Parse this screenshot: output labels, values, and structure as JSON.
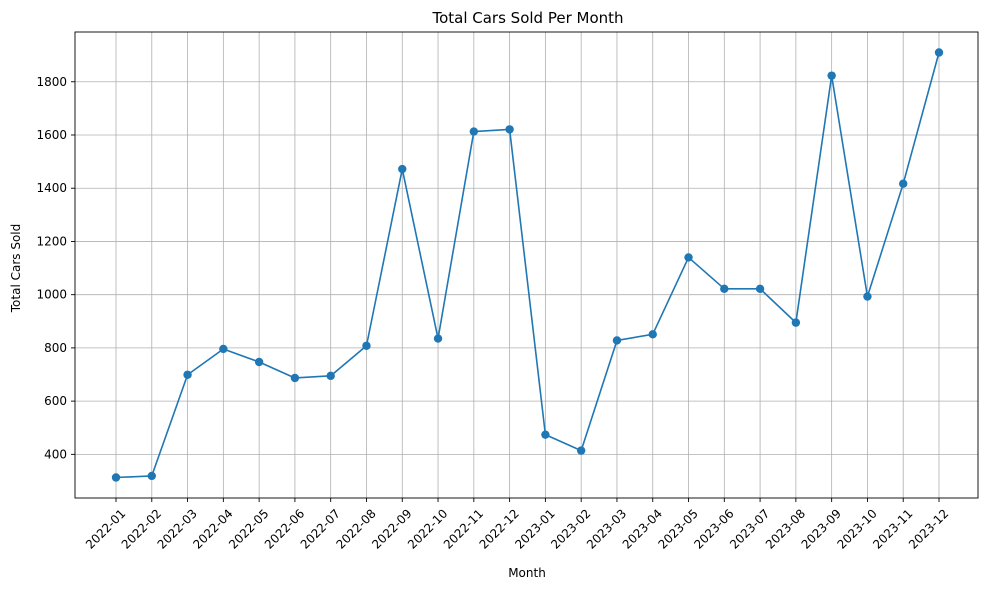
{
  "chart_data": {
    "type": "line",
    "title": "Total Cars Sold Per Month",
    "xlabel": "Month",
    "ylabel": "Total Cars Sold",
    "categories": [
      "2022-01",
      "2022-02",
      "2022-03",
      "2022-04",
      "2022-05",
      "2022-06",
      "2022-07",
      "2022-08",
      "2022-09",
      "2022-10",
      "2022-11",
      "2022-12",
      "2023-01",
      "2023-02",
      "2023-03",
      "2023-04",
      "2023-05",
      "2023-06",
      "2023-07",
      "2023-08",
      "2023-09",
      "2023-10",
      "2023-11",
      "2023-12"
    ],
    "series": [
      {
        "values": [
          313,
          319,
          699,
          796,
          747,
          687,
          695,
          808,
          1472,
          835,
          1613,
          1621,
          474,
          414,
          828,
          851,
          1140,
          1022,
          1022,
          895,
          1823,
          993,
          1417,
          1910
        ]
      }
    ],
    "yticks": [
      400,
      600,
      800,
      1000,
      1200,
      1400,
      1600,
      1800
    ],
    "ylim": [
      236,
      1987
    ],
    "grid": true,
    "line_color": "#1f77b4",
    "grid_color": "#b0b0b0"
  }
}
